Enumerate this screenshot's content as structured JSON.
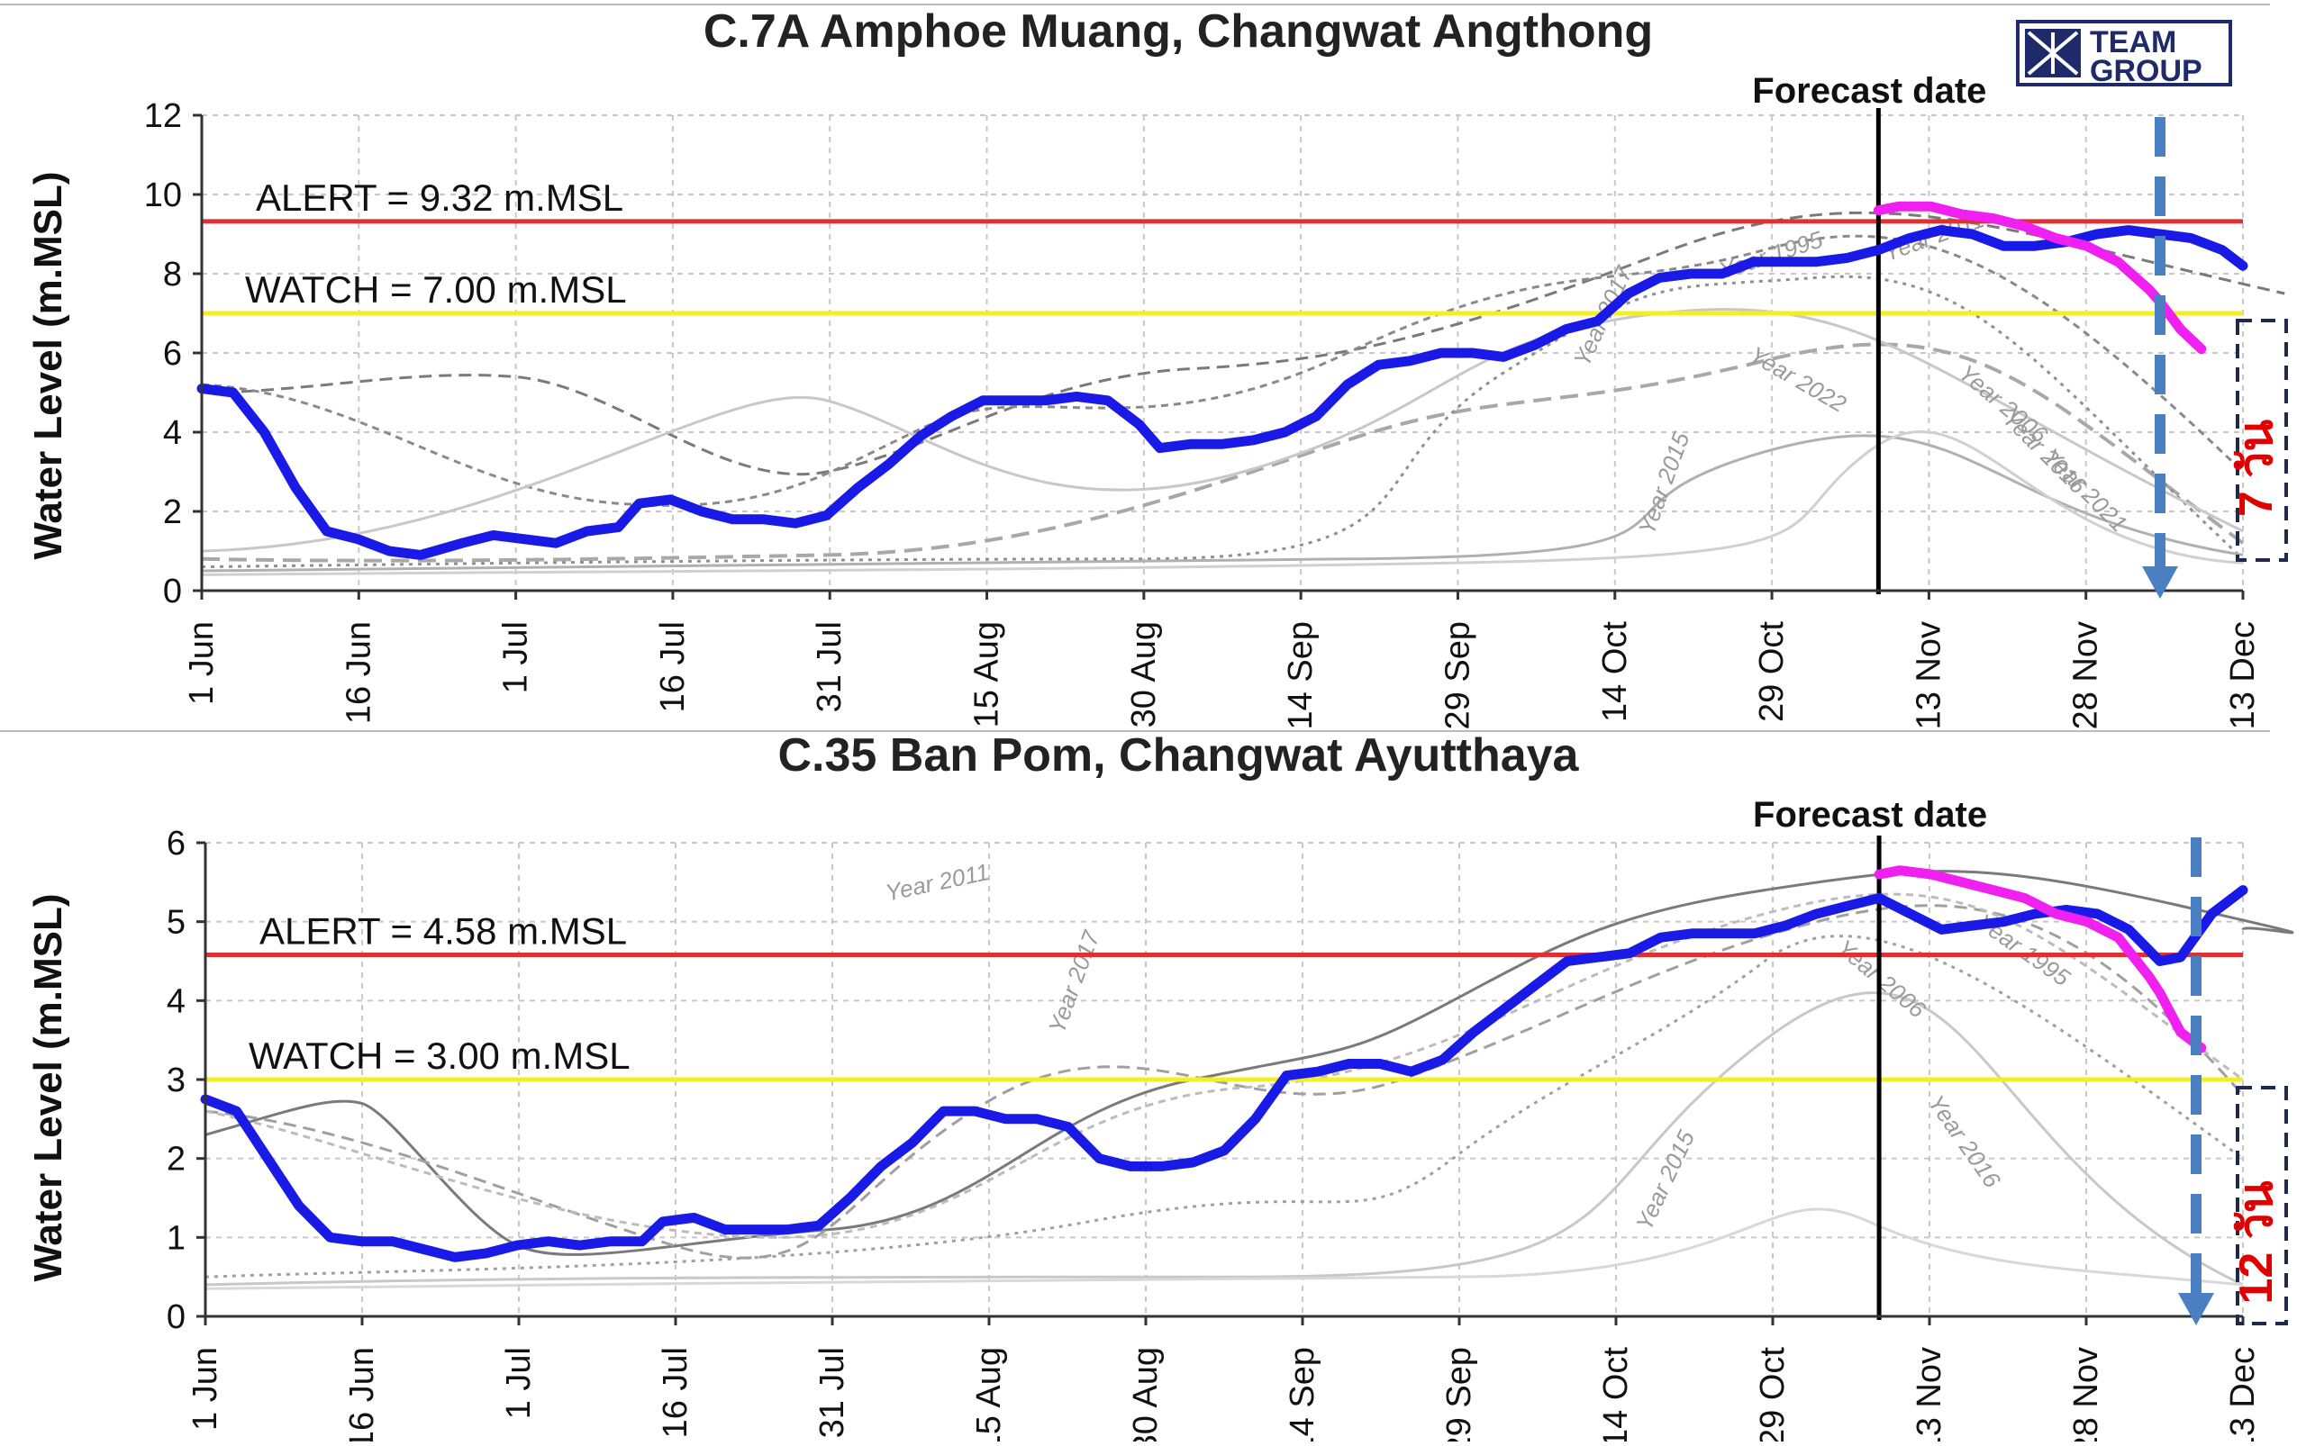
{
  "logo": {
    "line1": "TEAM",
    "line2": "GROUP"
  },
  "x_tick_labels": [
    "1 Jun",
    "16 Jun",
    "1 Jul",
    "16 Jul",
    "31 Jul",
    "15 Aug",
    "30 Aug",
    "14 Sep",
    "29 Sep",
    "14 Oct",
    "29 Oct",
    "13 Nov",
    "28 Nov",
    "13 Dec"
  ],
  "chart_data": [
    {
      "type": "line",
      "title": "C.7A Amphoe Muang, Changwat Angthong",
      "ylabel": "Water Level (m.MSL)",
      "xlim_day": [
        0,
        196
      ],
      "ylim": [
        0,
        12
      ],
      "yticks": [
        0,
        2,
        4,
        6,
        8,
        10,
        12
      ],
      "grid": true,
      "forecast_label": "Forecast date",
      "forecast_day": 161,
      "thresholds": [
        {
          "label": "ALERT = 9.32 m.MSL",
          "value": 9.32,
          "color": "#e03030"
        },
        {
          "label": "WATCH = 7.00 m.MSL",
          "value": 7.0,
          "color": "#f5ee20"
        }
      ],
      "duration_marker": {
        "label": "7 วัน",
        "x_day": 188,
        "color": "#4a7fc1"
      },
      "observed": {
        "color": "#1a1ae6",
        "points": [
          [
            0,
            5.1
          ],
          [
            3,
            5.0
          ],
          [
            6,
            4.0
          ],
          [
            9,
            2.6
          ],
          [
            12,
            1.5
          ],
          [
            15,
            1.3
          ],
          [
            18,
            1.0
          ],
          [
            21,
            0.9
          ],
          [
            25,
            1.2
          ],
          [
            28,
            1.4
          ],
          [
            31,
            1.3
          ],
          [
            34,
            1.2
          ],
          [
            37,
            1.5
          ],
          [
            40,
            1.6
          ],
          [
            42,
            2.2
          ],
          [
            45,
            2.3
          ],
          [
            48,
            2.0
          ],
          [
            51,
            1.8
          ],
          [
            54,
            1.8
          ],
          [
            57,
            1.7
          ],
          [
            60,
            1.9
          ],
          [
            63,
            2.6
          ],
          [
            66,
            3.2
          ],
          [
            69,
            3.9
          ],
          [
            72,
            4.4
          ],
          [
            75,
            4.8
          ],
          [
            78,
            4.8
          ],
          [
            81,
            4.8
          ],
          [
            84,
            4.9
          ],
          [
            87,
            4.8
          ],
          [
            90,
            4.2
          ],
          [
            92,
            3.6
          ],
          [
            95,
            3.7
          ],
          [
            98,
            3.7
          ],
          [
            101,
            3.8
          ],
          [
            104,
            4.0
          ],
          [
            107,
            4.4
          ],
          [
            110,
            5.2
          ],
          [
            113,
            5.7
          ],
          [
            116,
            5.8
          ],
          [
            119,
            6.0
          ],
          [
            122,
            6.0
          ],
          [
            125,
            5.9
          ],
          [
            128,
            6.2
          ],
          [
            131,
            6.6
          ],
          [
            134,
            6.8
          ],
          [
            137,
            7.5
          ],
          [
            140,
            7.9
          ],
          [
            143,
            8.0
          ],
          [
            146,
            8.0
          ],
          [
            149,
            8.3
          ],
          [
            152,
            8.3
          ],
          [
            155,
            8.3
          ],
          [
            158,
            8.4
          ],
          [
            161,
            8.6
          ],
          [
            164,
            8.9
          ],
          [
            167,
            9.1
          ],
          [
            170,
            9.0
          ],
          [
            173,
            8.7
          ],
          [
            176,
            8.7
          ],
          [
            179,
            8.8
          ],
          [
            182,
            9.0
          ],
          [
            185,
            9.1
          ],
          [
            188,
            9.0
          ],
          [
            191,
            8.9
          ],
          [
            194,
            8.6
          ],
          [
            196,
            8.2
          ]
        ]
      },
      "forecast": {
        "color": "#f020f0",
        "points": [
          [
            161,
            9.6
          ],
          [
            163,
            9.7
          ],
          [
            166,
            9.7
          ],
          [
            169,
            9.5
          ],
          [
            172,
            9.4
          ],
          [
            175,
            9.2
          ],
          [
            178,
            8.9
          ],
          [
            181,
            8.7
          ],
          [
            184,
            8.3
          ],
          [
            187,
            7.6
          ],
          [
            188,
            7.3
          ],
          [
            190,
            6.6
          ],
          [
            192,
            6.1
          ]
        ]
      }
    },
    {
      "type": "line",
      "title": "C.35 Ban Pom, Changwat Ayutthaya",
      "ylabel": "Water Level (m.MSL)",
      "xlim_day": [
        0,
        196
      ],
      "ylim": [
        0,
        6
      ],
      "yticks": [
        0,
        1,
        2,
        3,
        4,
        5,
        6
      ],
      "grid": true,
      "forecast_label": "Forecast date",
      "forecast_day": 161,
      "thresholds": [
        {
          "label": "ALERT = 4.58 m.MSL",
          "value": 4.58,
          "color": "#e03030"
        },
        {
          "label": "WATCH = 3.00 m.MSL",
          "value": 3.0,
          "color": "#f5ee20"
        }
      ],
      "duration_marker": {
        "label": "12 วัน",
        "x_day": 192,
        "color": "#4a7fc1"
      },
      "observed": {
        "color": "#1a1ae6",
        "points": [
          [
            0,
            2.75
          ],
          [
            3,
            2.6
          ],
          [
            6,
            2.0
          ],
          [
            9,
            1.4
          ],
          [
            12,
            1.0
          ],
          [
            15,
            0.95
          ],
          [
            18,
            0.95
          ],
          [
            21,
            0.85
          ],
          [
            24,
            0.75
          ],
          [
            27,
            0.8
          ],
          [
            30,
            0.9
          ],
          [
            33,
            0.95
          ],
          [
            36,
            0.9
          ],
          [
            39,
            0.95
          ],
          [
            42,
            0.95
          ],
          [
            44,
            1.2
          ],
          [
            47,
            1.25
          ],
          [
            50,
            1.1
          ],
          [
            53,
            1.1
          ],
          [
            56,
            1.1
          ],
          [
            59,
            1.15
          ],
          [
            62,
            1.5
          ],
          [
            65,
            1.9
          ],
          [
            68,
            2.2
          ],
          [
            71,
            2.6
          ],
          [
            74,
            2.6
          ],
          [
            77,
            2.5
          ],
          [
            80,
            2.5
          ],
          [
            83,
            2.4
          ],
          [
            86,
            2.0
          ],
          [
            89,
            1.9
          ],
          [
            92,
            1.9
          ],
          [
            95,
            1.95
          ],
          [
            98,
            2.1
          ],
          [
            101,
            2.5
          ],
          [
            104,
            3.05
          ],
          [
            107,
            3.1
          ],
          [
            110,
            3.2
          ],
          [
            113,
            3.2
          ],
          [
            116,
            3.1
          ],
          [
            119,
            3.25
          ],
          [
            122,
            3.6
          ],
          [
            125,
            3.9
          ],
          [
            128,
            4.2
          ],
          [
            131,
            4.5
          ],
          [
            134,
            4.55
          ],
          [
            137,
            4.6
          ],
          [
            140,
            4.8
          ],
          [
            143,
            4.85
          ],
          [
            146,
            4.85
          ],
          [
            149,
            4.85
          ],
          [
            152,
            4.95
          ],
          [
            155,
            5.1
          ],
          [
            158,
            5.2
          ],
          [
            161,
            5.3
          ],
          [
            164,
            5.1
          ],
          [
            167,
            4.9
          ],
          [
            170,
            4.95
          ],
          [
            173,
            5.0
          ],
          [
            176,
            5.1
          ],
          [
            179,
            5.15
          ],
          [
            182,
            5.1
          ],
          [
            185,
            4.9
          ],
          [
            188,
            4.5
          ],
          [
            190,
            4.55
          ],
          [
            193,
            5.1
          ],
          [
            196,
            5.4
          ]
        ]
      },
      "forecast": {
        "color": "#f020f0",
        "points": [
          [
            161,
            5.6
          ],
          [
            163,
            5.65
          ],
          [
            166,
            5.6
          ],
          [
            169,
            5.5
          ],
          [
            172,
            5.4
          ],
          [
            175,
            5.3
          ],
          [
            178,
            5.1
          ],
          [
            181,
            5.0
          ],
          [
            184,
            4.8
          ],
          [
            187,
            4.3
          ],
          [
            188,
            4.1
          ],
          [
            190,
            3.6
          ],
          [
            192,
            3.4
          ]
        ]
      }
    }
  ],
  "historical_labels_top": [
    "Year 2011",
    "Year 1995",
    "Year 2017",
    "Year 2022",
    "Year 2006",
    "Year 2016",
    "Year 2021",
    "Year 2015"
  ],
  "historical_labels_bottom": [
    "Year 2011",
    "Year 2017",
    "Year 2006",
    "Year 1995",
    "Year 2016",
    "Year 2015"
  ]
}
